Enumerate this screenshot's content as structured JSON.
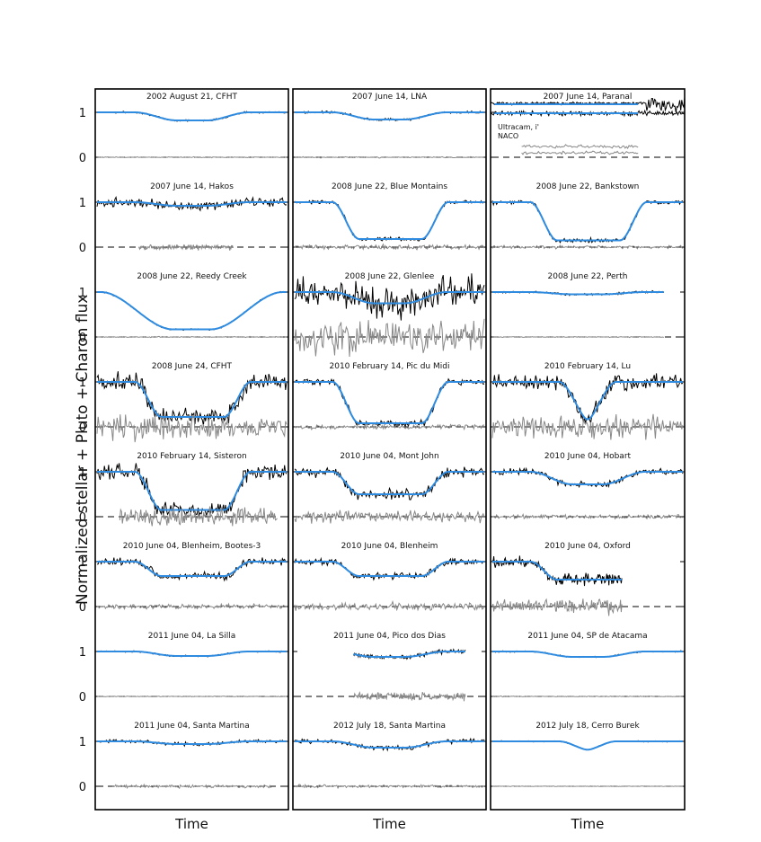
{
  "chart_data": {
    "type": "line",
    "ylabel": "Normalized stellar + Pluto + Charon flux",
    "xlabel": "Time",
    "yticks": [
      0,
      1
    ],
    "series_colors": {
      "observed": "#000000",
      "model": "#2e8be0",
      "residual": "#888888"
    },
    "columns": [
      {
        "xlabel": "Time",
        "panels": [
          {
            "label": "2002 August 21, CFHT",
            "depth": 0.82,
            "noise": 0.012,
            "resid": 0.006,
            "shape": "smooth",
            "x_start": 0.0,
            "x_end": 1.0,
            "resid_start": 0.0,
            "resid_end": 1.0
          },
          {
            "label": "2007 June 14, Hakos",
            "depth": 0.92,
            "noise": 0.06,
            "resid": 0.035,
            "shape": "smooth",
            "x_start": 0.0,
            "x_end": 1.0,
            "resid_start": 0.22,
            "resid_end": 0.72
          },
          {
            "label": "2008 June 22, Reedy Creek",
            "depth": 0.17,
            "noise": 0.01,
            "resid": 0.006,
            "shape": "broad",
            "x_start": 0.0,
            "x_end": 1.0,
            "resid_start": 0.0,
            "resid_end": 1.0
          },
          {
            "label": "2008 June 24, CFHT",
            "depth": 0.22,
            "noise": 0.12,
            "resid": 0.18,
            "shape": "flat",
            "x_start": 0.0,
            "x_end": 1.0,
            "resid_start": 0.0,
            "resid_end": 1.0
          },
          {
            "label": "2010 February 14, Sisteron",
            "depth": 0.15,
            "noise": 0.1,
            "resid": 0.12,
            "shape": "flat",
            "x_start": 0.0,
            "x_end": 1.0,
            "resid_start": 0.12,
            "resid_end": 0.95
          },
          {
            "label": "2010 June 04, Blenheim, Bootes-3",
            "depth": 0.68,
            "noise": 0.05,
            "resid": 0.03,
            "shape": "flat",
            "x_start": 0.0,
            "x_end": 1.0,
            "resid_start": 0.0,
            "resid_end": 1.0
          },
          {
            "label": "2011 June 04, La Silla",
            "depth": 0.9,
            "noise": 0.01,
            "resid": 0.006,
            "shape": "smooth",
            "x_start": 0.0,
            "x_end": 1.0,
            "resid_start": 0.0,
            "resid_end": 1.0
          },
          {
            "label": "2011 June 04, Santa Martina",
            "depth": 0.94,
            "noise": 0.025,
            "resid": 0.02,
            "shape": "smooth",
            "x_start": 0.0,
            "x_end": 1.0,
            "resid_start": 0.08,
            "resid_end": 0.92
          }
        ]
      },
      {
        "xlabel": "Time",
        "panels": [
          {
            "label": "2007 June 14, LNA",
            "depth": 0.84,
            "noise": 0.015,
            "resid": 0.008,
            "shape": "smooth",
            "x_start": 0.0,
            "x_end": 1.0,
            "resid_start": 0.0,
            "resid_end": 1.0
          },
          {
            "label": "2008 June 22, Blue Montains",
            "depth": 0.18,
            "noise": 0.025,
            "resid": 0.03,
            "shape": "flat",
            "x_start": 0.0,
            "x_end": 1.0,
            "resid_start": 0.0,
            "resid_end": 1.0
          },
          {
            "label": "2008 June 22, Glenlee",
            "depth": 0.75,
            "noise": 0.2,
            "resid": 0.25,
            "shape": "smooth",
            "x_start": 0.0,
            "x_end": 1.0,
            "resid_start": 0.0,
            "resid_end": 1.0
          },
          {
            "label": "2010 February 14, Pic du Midi",
            "depth": 0.08,
            "noise": 0.04,
            "resid": 0.03,
            "shape": "flat",
            "x_start": 0.0,
            "x_end": 1.0,
            "resid_start": 0.0,
            "resid_end": 1.0
          },
          {
            "label": "2010 June 04, Mont John",
            "depth": 0.5,
            "noise": 0.07,
            "resid": 0.08,
            "shape": "flat",
            "x_start": 0.0,
            "x_end": 1.0,
            "resid_start": 0.0,
            "resid_end": 1.0
          },
          {
            "label": "2010 June 04, Blenheim",
            "depth": 0.68,
            "noise": 0.04,
            "resid": 0.05,
            "shape": "flat",
            "x_start": 0.0,
            "x_end": 1.0,
            "resid_start": 0.0,
            "resid_end": 1.0
          },
          {
            "label": "2011 June 04, Pico dos Dias",
            "depth": 0.88,
            "noise": 0.03,
            "resid": 0.05,
            "shape": "smooth",
            "x_start": 0.31,
            "x_end": 0.9,
            "resid_start": 0.31,
            "resid_end": 0.9
          },
          {
            "label": "2012 July 18, Santa Martina",
            "depth": 0.86,
            "noise": 0.03,
            "resid": 0.02,
            "shape": "smooth",
            "x_start": 0.0,
            "x_end": 1.0,
            "resid_start": 0.0,
            "resid_end": 1.0
          }
        ]
      },
      {
        "xlabel": "Time",
        "panels": [
          {
            "label": "2007 June 14, Paranal",
            "depth": 0.0,
            "noise": 0.0,
            "resid": 0.0,
            "shape": "special",
            "x_start": 0.0,
            "x_end": 1.0,
            "resid_start": 0.16,
            "resid_end": 0.76
          },
          {
            "label": "2008 June 22, Bankstown",
            "depth": 0.15,
            "noise": 0.03,
            "resid": 0.02,
            "shape": "flat",
            "x_start": 0.0,
            "x_end": 1.0,
            "resid_start": 0.0,
            "resid_end": 1.0
          },
          {
            "label": "2008 June 22, Perth",
            "depth": 0.95,
            "noise": 0.015,
            "resid": 0.006,
            "shape": "smooth",
            "x_start": 0.0,
            "x_end": 0.9,
            "resid_start": 0.0,
            "resid_end": 0.9
          },
          {
            "label": "2010 February 14, Lu",
            "depth": 0.1,
            "noise": 0.1,
            "resid": 0.15,
            "shape": "narrow",
            "x_start": 0.0,
            "x_end": 1.0,
            "resid_start": 0.0,
            "resid_end": 1.0
          },
          {
            "label": "2010 June 04, Hobart",
            "depth": 0.72,
            "noise": 0.04,
            "resid": 0.03,
            "shape": "smooth",
            "x_start": 0.0,
            "x_end": 1.0,
            "resid_start": 0.0,
            "resid_end": 1.0
          },
          {
            "label": "2010 June 04, Oxford",
            "depth": 0.6,
            "noise": 0.08,
            "resid": 0.09,
            "shape": "flat",
            "x_start": 0.0,
            "x_end": 0.68,
            "resid_start": 0.0,
            "resid_end": 0.68
          },
          {
            "label": "2011 June 04, SP de Atacama",
            "depth": 0.88,
            "noise": 0.01,
            "resid": 0.006,
            "shape": "smooth",
            "x_start": 0.0,
            "x_end": 1.0,
            "resid_start": 0.0,
            "resid_end": 1.0
          },
          {
            "label": "2012 July 18, Cerro Burek",
            "depth": 0.8,
            "noise": 0.008,
            "resid": 0.004,
            "shape": "narrow",
            "x_start": 0.0,
            "x_end": 1.0,
            "resid_start": 0.0,
            "resid_end": 1.0
          }
        ]
      }
    ],
    "annotations": [
      "Ultracam, i'",
      "NACO"
    ]
  }
}
